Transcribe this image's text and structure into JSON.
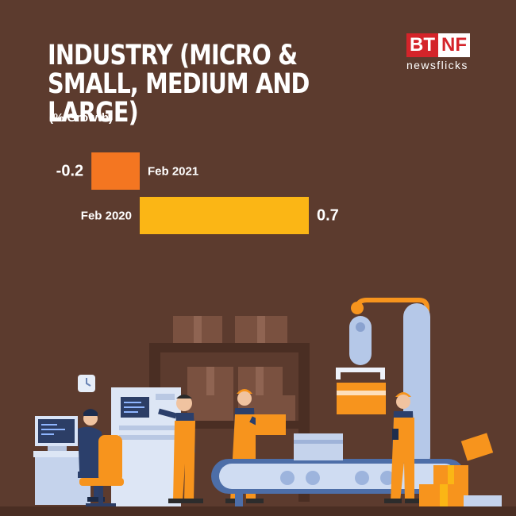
{
  "title": "INDUSTRY (MICRO & SMALL, MEDIUM AND LARGE)",
  "subtitle": "(% Growth)",
  "logo": {
    "left": "BT",
    "right": "NF",
    "tagline": "newsflicks"
  },
  "colors": {
    "background": "#5c3b2e",
    "feb_2021": "#f47621",
    "feb_2020": "#fbb615"
  },
  "chart_data": {
    "type": "bar",
    "orientation": "horizontal",
    "categories": [
      "Feb 2021",
      "Feb 2020"
    ],
    "values": [
      -0.2,
      0.7
    ],
    "value_labels": [
      "-0.2",
      "0.7"
    ],
    "title": "INDUSTRY (MICRO & SMALL, MEDIUM AND LARGE)",
    "subtitle": "(% Growth)"
  }
}
